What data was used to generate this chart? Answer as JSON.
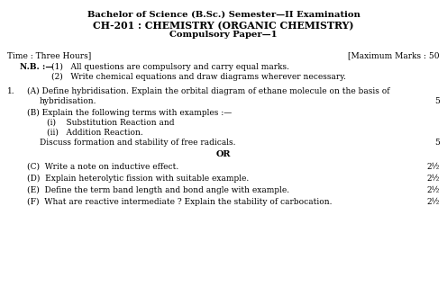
{
  "bg_color": "#ffffff",
  "title1": "Bachelor of Science (B.Sc.) Semester—II Examination",
  "title2": "CH-201 : CHEMISTRY (ORGANIC CHEMISTRY)",
  "title3": "Compulsory Paper—1",
  "time_label": "Time : Three Hours]",
  "marks_label": "[Maximum Marks : 50",
  "nb_label": "N.B. :—",
  "nb1": "(1)   All questions are compulsory and carry equal marks.",
  "nb2": "(2)   Write chemical equations and draw diagrams wherever necessary.",
  "q1_num": "1.",
  "q1a_line1": "(A) Define hybridisation. Explain the orbital diagram of ethane molecule on the basis of",
  "q1a_line2": "hybridisation.",
  "q1a_marks": "5",
  "q1b_line1": "(B) Explain the following terms with examples :—",
  "q1b_i": "(i)    Substitution Reaction and",
  "q1b_ii": "(ii)   Addition Reaction.",
  "q1b_discuss": "Discuss formation and stability of free radicals.",
  "q1b_marks": "5",
  "or_text": "OR",
  "q1c_text": "(C)  Write a note on inductive effect.",
  "q1c_marks": "2½",
  "q1d_text": "(D)  Explain heterolytic fission with suitable example.",
  "q1d_marks": "2½",
  "q1e_text": "(E)  Define the term band length and bond angle with example.",
  "q1e_marks": "2½",
  "q1f_text": "(F)  What are reactive intermediate ? Explain the stability of carbocation.",
  "q1f_marks": "2½",
  "fig_width": 4.96,
  "fig_height": 3.29,
  "dpi": 100
}
